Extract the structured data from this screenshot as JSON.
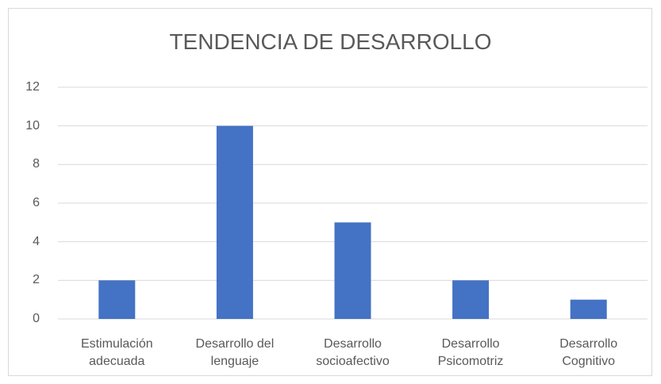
{
  "chart_data": {
    "type": "bar",
    "title": "TENDENCIA DE DESARROLLO",
    "categories": [
      "Estimulación adecuada",
      "Desarrollo del lenguaje",
      "Desarrollo socioafectivo",
      "Desarrollo Psicomotriz",
      "Desarrollo Cognitivo"
    ],
    "values": [
      2,
      10,
      5,
      2,
      1
    ],
    "color": "#4472c4",
    "ylim": [
      0,
      12
    ],
    "yticks": [
      0,
      2,
      4,
      6,
      8,
      10,
      12
    ],
    "grid": true
  }
}
